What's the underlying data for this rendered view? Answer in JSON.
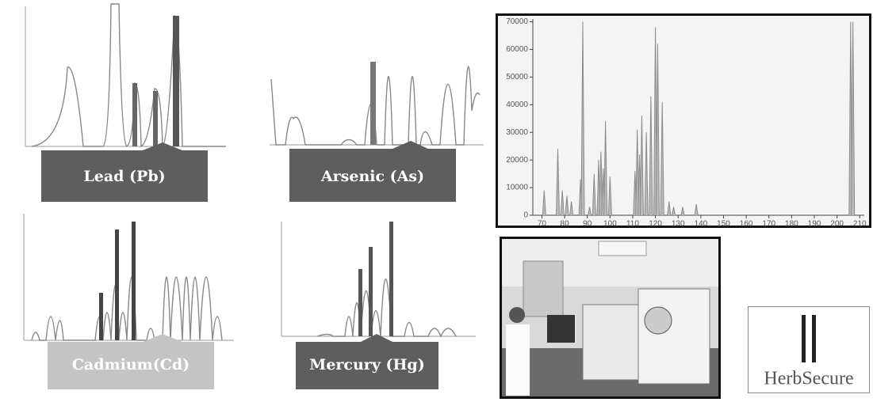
{
  "chart_data": {
    "type": "spike",
    "x": [
      71,
      77,
      79,
      81,
      83,
      87,
      88,
      91,
      93,
      95,
      96,
      97,
      98,
      100,
      111,
      112,
      113,
      114,
      116,
      118,
      120,
      121,
      123,
      126,
      128,
      132,
      138,
      206,
      207
    ],
    "values": [
      9000,
      24000,
      9000,
      7000,
      5000,
      13000,
      70000,
      3000,
      15000,
      20000,
      23000,
      17000,
      34000,
      14000,
      16000,
      31000,
      22000,
      36000,
      30000,
      43000,
      68000,
      62000,
      41000,
      5000,
      3000,
      3000,
      4000,
      70000,
      70000
    ],
    "color": "#8a8a8a",
    "xlim": [
      66,
      212
    ],
    "ylim": [
      0,
      71000
    ],
    "xticks": [
      70,
      80,
      90,
      100,
      110,
      120,
      130,
      140,
      150,
      160,
      170,
      180,
      190,
      200,
      210
    ],
    "yticks": [
      0,
      10000,
      20000,
      30000,
      40000,
      50000,
      60000,
      70000
    ]
  },
  "panels": [
    {
      "label": "Lead (Pb)"
    },
    {
      "label": "Arsenic (As)"
    },
    {
      "label": "Cadmium(Cd)"
    },
    {
      "label": "Mercury (Hg)"
    }
  ],
  "logo": {
    "text": "HerbSecure"
  }
}
